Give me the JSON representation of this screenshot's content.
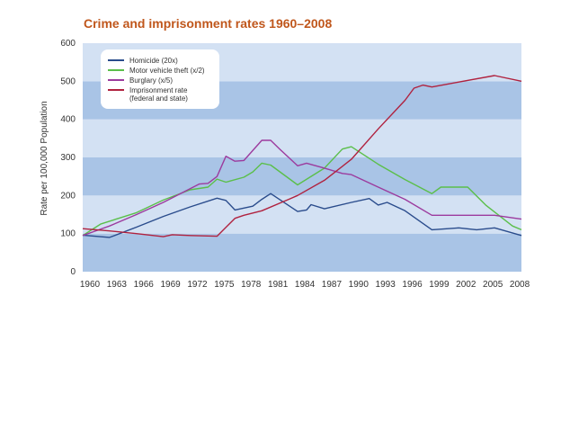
{
  "chart_data": {
    "type": "line",
    "title": "Crime and imprisonment rates 1960–2008",
    "ylabel": "Rate per 100,000 Population",
    "xlabel": "",
    "xlim": [
      1960,
      2009
    ],
    "ylim": [
      0,
      600
    ],
    "yticks": [
      0,
      100,
      200,
      300,
      400,
      500,
      600
    ],
    "xticks": [
      1960,
      1963,
      1966,
      1969,
      1972,
      1975,
      1978,
      1981,
      1984,
      1987,
      1990,
      1993,
      1996,
      1999,
      2002,
      2005,
      2008
    ],
    "legend_position": "top-left",
    "grid": "horizontal bands",
    "band_colors": [
      "#a9c4e6",
      "#d3e1f3"
    ],
    "series": [
      {
        "name": "Homicide (20x)",
        "color": "#2a4c8c",
        "x": [
          1960,
          1963,
          1966,
          1969,
          1972,
          1975,
          1976,
          1977,
          1979,
          1980,
          1981,
          1984,
          1985,
          1985.5,
          1987,
          1990,
          1992,
          1993,
          1994,
          1996,
          1999,
          2002,
          2004,
          2006,
          2009
        ],
        "y": [
          96,
          90,
          117,
          145,
          170,
          193,
          187,
          162,
          172,
          190,
          205,
          158,
          162,
          176,
          165,
          182,
          192,
          175,
          182,
          160,
          110,
          115,
          110,
          115,
          95
        ]
      },
      {
        "name": "Motor vehicle theft (x/2)",
        "color": "#5bbf4a",
        "x": [
          1960,
          1962,
          1966,
          1969,
          1972,
          1974,
          1975,
          1976,
          1978,
          1979,
          1980,
          1981,
          1984,
          1987,
          1989,
          1990,
          1993,
          1996,
          1999,
          2000,
          2002,
          2003,
          2005,
          2008,
          2009
        ],
        "y": [
          95,
          125,
          155,
          188,
          215,
          222,
          243,
          235,
          248,
          262,
          285,
          280,
          228,
          272,
          322,
          328,
          282,
          242,
          205,
          222,
          222,
          222,
          175,
          120,
          110
        ]
      },
      {
        "name": "Burglary (x/5)",
        "color": "#9c3b9e",
        "x": [
          1960,
          1963,
          1966,
          1969,
          1972,
          1973,
          1974,
          1975,
          1976,
          1977,
          1978,
          1980,
          1981,
          1982,
          1984,
          1985,
          1987,
          1989,
          1990,
          1993,
          1996,
          1999,
          2002,
          2006,
          2009
        ],
        "y": [
          95,
          120,
          150,
          182,
          218,
          230,
          232,
          250,
          303,
          290,
          292,
          345,
          345,
          322,
          278,
          285,
          272,
          258,
          255,
          222,
          190,
          148,
          148,
          148,
          138
        ]
      },
      {
        "name": "Imprisonment rate\n(federal and state)",
        "color": "#b0223f",
        "x": [
          1960,
          1963,
          1966,
          1969,
          1970,
          1972,
          1975,
          1977,
          1978,
          1980,
          1983,
          1984,
          1987,
          1990,
          1993,
          1996,
          1997,
          1998,
          1999,
          2002,
          2006,
          2009
        ],
        "y": [
          113,
          107,
          100,
          92,
          97,
          95,
          93,
          140,
          148,
          160,
          190,
          200,
          240,
          295,
          375,
          450,
          482,
          490,
          485,
          498,
          515,
          500
        ]
      }
    ]
  }
}
